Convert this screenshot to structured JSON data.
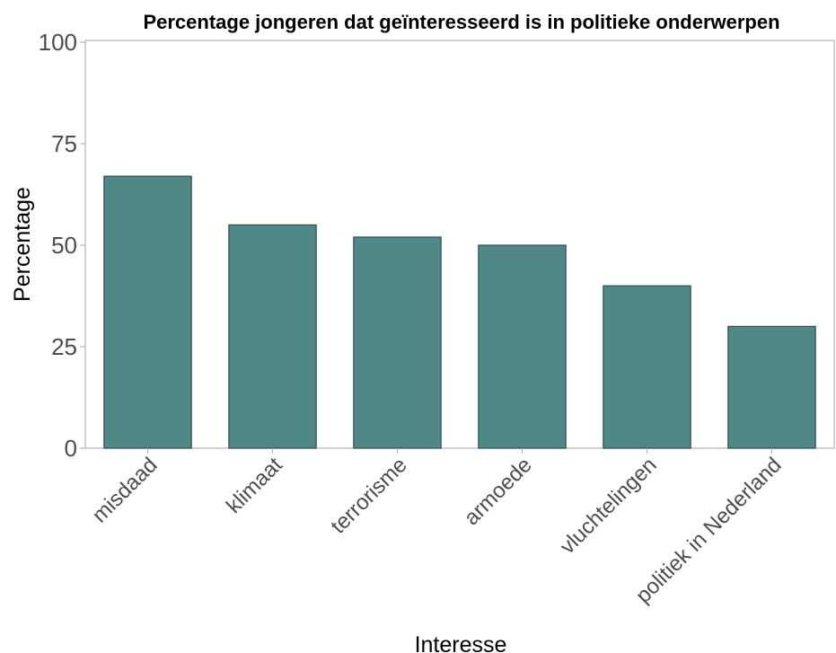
{
  "chart_data": {
    "type": "bar",
    "title": "Percentage jongeren dat geïnteresseerd is in politieke onderwerpen",
    "xlabel": "Interesse",
    "ylabel": "Percentage",
    "categories": [
      "misdaad",
      "klimaat",
      "terrorisme",
      "armoede",
      "vluchtelingen",
      "politiek in Nederland"
    ],
    "values": [
      67,
      55,
      52,
      50,
      40,
      30
    ],
    "ylim": [
      0,
      100
    ],
    "yticks": [
      "0",
      "25",
      "50",
      "75",
      "100"
    ],
    "grid": false,
    "legend": "none",
    "colors": {
      "bar_fill": "#4f8886",
      "bar_stroke": "#2f4f4e",
      "panel_border": "#b3b3b3",
      "tick_text": "#4d4d4d"
    }
  }
}
